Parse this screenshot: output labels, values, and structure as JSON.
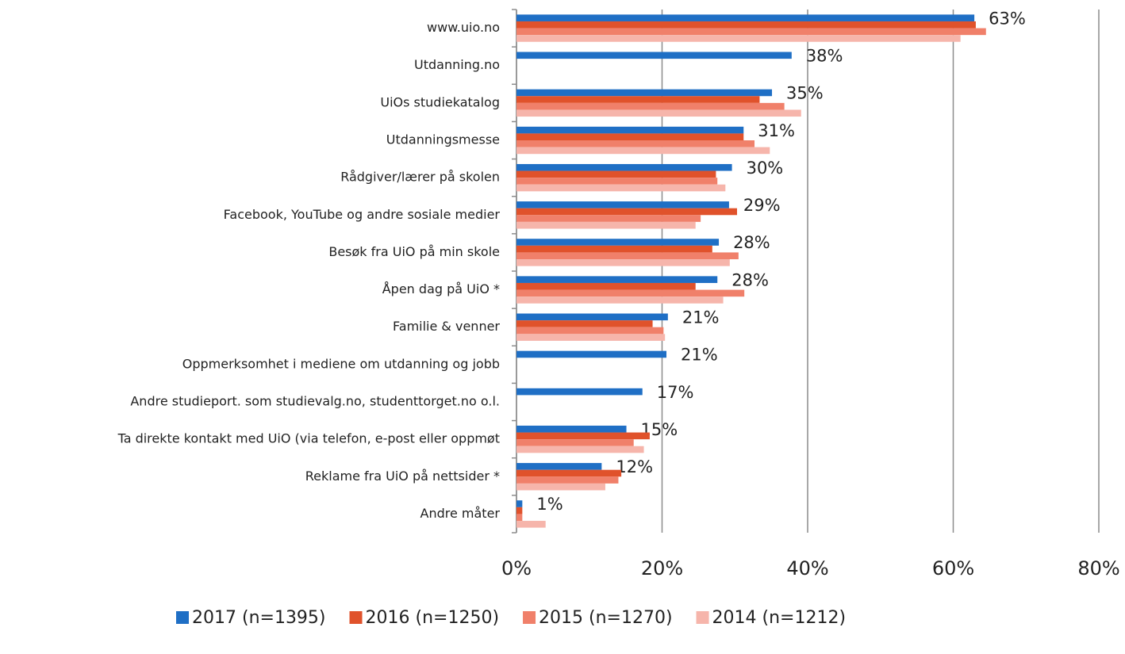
{
  "chart_data": {
    "type": "hbar",
    "categories": [
      "www.uio.no",
      "Utdanning.no",
      "UiOs studiekatalog",
      "Utdanningsmesse",
      "Rådgiver/lærer på skolen",
      "Facebook, YouTube og andre sosiale medier",
      "Besøk fra UiO på min skole",
      "Åpen dag på UiO *",
      "Familie & venner",
      "Oppmerksomhet i mediene om utdanning og jobb",
      "Andre studieport. som studievalg.no, studenttorget.no o.l.",
      "Ta direkte kontakt med UiO (via telefon, e-post eller oppmøt",
      "Reklame fra UiO på nettsider *",
      "Andre måter"
    ],
    "series": [
      {
        "name": "2017 (n=1395)",
        "color": "#1f6fc5",
        "values": [
          62.9,
          37.8,
          35.1,
          31.2,
          29.6,
          29.2,
          27.8,
          27.6,
          20.8,
          20.6,
          17.3,
          15.1,
          11.7,
          0.8
        ],
        "value_labels": [
          "63%",
          "38%",
          "35%",
          "31%",
          "30%",
          "29%",
          "28%",
          "28%",
          "21%",
          "21%",
          "17%",
          "15%",
          "12%",
          "1%"
        ]
      },
      {
        "name": "2016 (n=1250)",
        "color": "#e0522b",
        "values": [
          63.1,
          null,
          33.4,
          31.2,
          27.4,
          30.3,
          26.9,
          24.6,
          18.7,
          null,
          null,
          18.3,
          14.4,
          0.8
        ]
      },
      {
        "name": "2015 (n=1270)",
        "color": "#f0806a",
        "values": [
          64.5,
          null,
          36.8,
          32.7,
          27.6,
          25.3,
          30.5,
          31.3,
          20.2,
          null,
          null,
          16.1,
          14.0,
          0.8
        ]
      },
      {
        "name": "2014 (n=1212)",
        "color": "#f6b5ab",
        "values": [
          61.0,
          null,
          39.1,
          34.8,
          28.7,
          24.6,
          29.3,
          28.4,
          20.4,
          null,
          null,
          17.5,
          12.2,
          4.0
        ]
      }
    ],
    "xlim": [
      0,
      80
    ],
    "xticks": [
      {
        "value": 0,
        "label": "0%"
      },
      {
        "value": 20,
        "label": "20%"
      },
      {
        "value": 40,
        "label": "40%"
      },
      {
        "value": 60,
        "label": "60%"
      },
      {
        "value": 80,
        "label": "80%"
      }
    ],
    "grid": true,
    "legend": "bottom"
  }
}
